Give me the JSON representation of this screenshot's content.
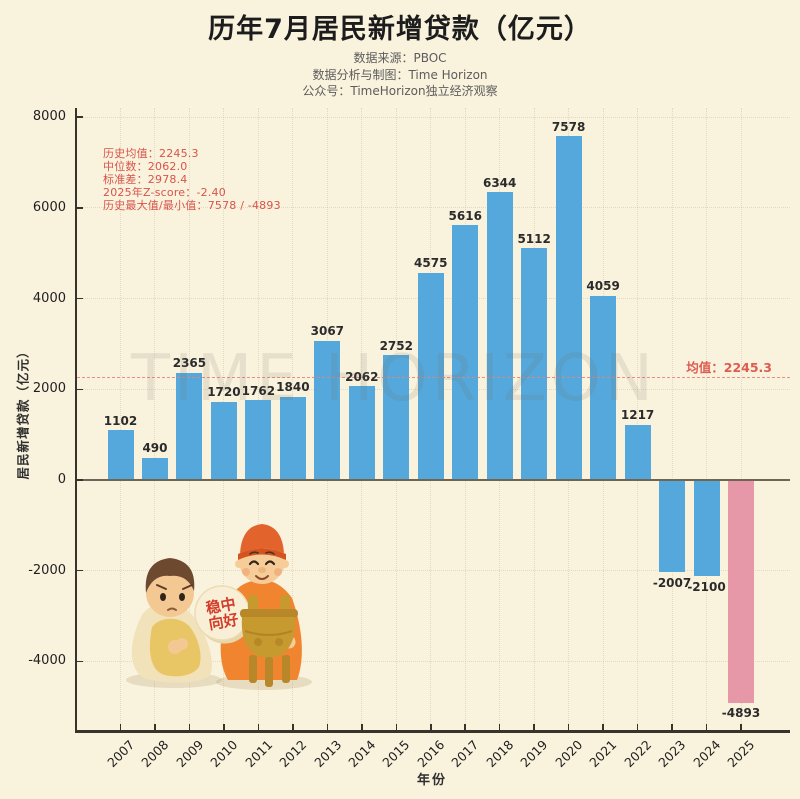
{
  "title": "历年7月居民新增贷款（亿元）",
  "subtitle": [
    "数据来源：PBOC",
    "数据分析与制图：Time Horizon",
    "公众号：TimeHorizon独立经济观察"
  ],
  "stats": {
    "lines": [
      "历史均值：2245.3",
      "中位数：2062.0",
      "标准差：2978.4",
      "2025年Z-score：-2.40",
      "历史最大值/最小值：7578 / -4893"
    ],
    "color": "#d9544a"
  },
  "watermark": "TIME HORIZON",
  "illustration": {
    "sign_lines": [
      "稳中",
      "向好"
    ],
    "sign_text": "稳中向好"
  },
  "colors": {
    "background": "#f9f2dd",
    "bar_blue": "#55a8dc",
    "bar_pink": "#e798a8",
    "mean_line": "#e5837b",
    "stats_red": "#d9544a",
    "axis": "#38332b"
  },
  "chart_data": {
    "type": "bar",
    "title": "历年7月居民新增贷款（亿元）",
    "xlabel": "年份",
    "ylabel": "居民新增贷款（亿元）",
    "categories": [
      "2007",
      "2008",
      "2009",
      "2010",
      "2011",
      "2012",
      "2013",
      "2014",
      "2015",
      "2016",
      "2017",
      "2018",
      "2019",
      "2020",
      "2021",
      "2022",
      "2023",
      "2024",
      "2025"
    ],
    "values": [
      1102,
      490,
      2365,
      1720,
      1762,
      1840,
      3067,
      2062,
      2752,
      4575,
      5616,
      6344,
      5112,
      7578,
      4059,
      1217,
      -2007,
      -2100,
      -4893
    ],
    "yticks": [
      -4000,
      -2000,
      0,
      2000,
      4000,
      6000,
      8000
    ],
    "ylim": [
      -5500,
      8200
    ],
    "grid": true,
    "legend": "none",
    "mean": 2245.3,
    "mean_label": "均值：2245.3",
    "highlight_index": 18,
    "bar_color": "#55a8dc",
    "highlight_color": "#e798a8"
  }
}
